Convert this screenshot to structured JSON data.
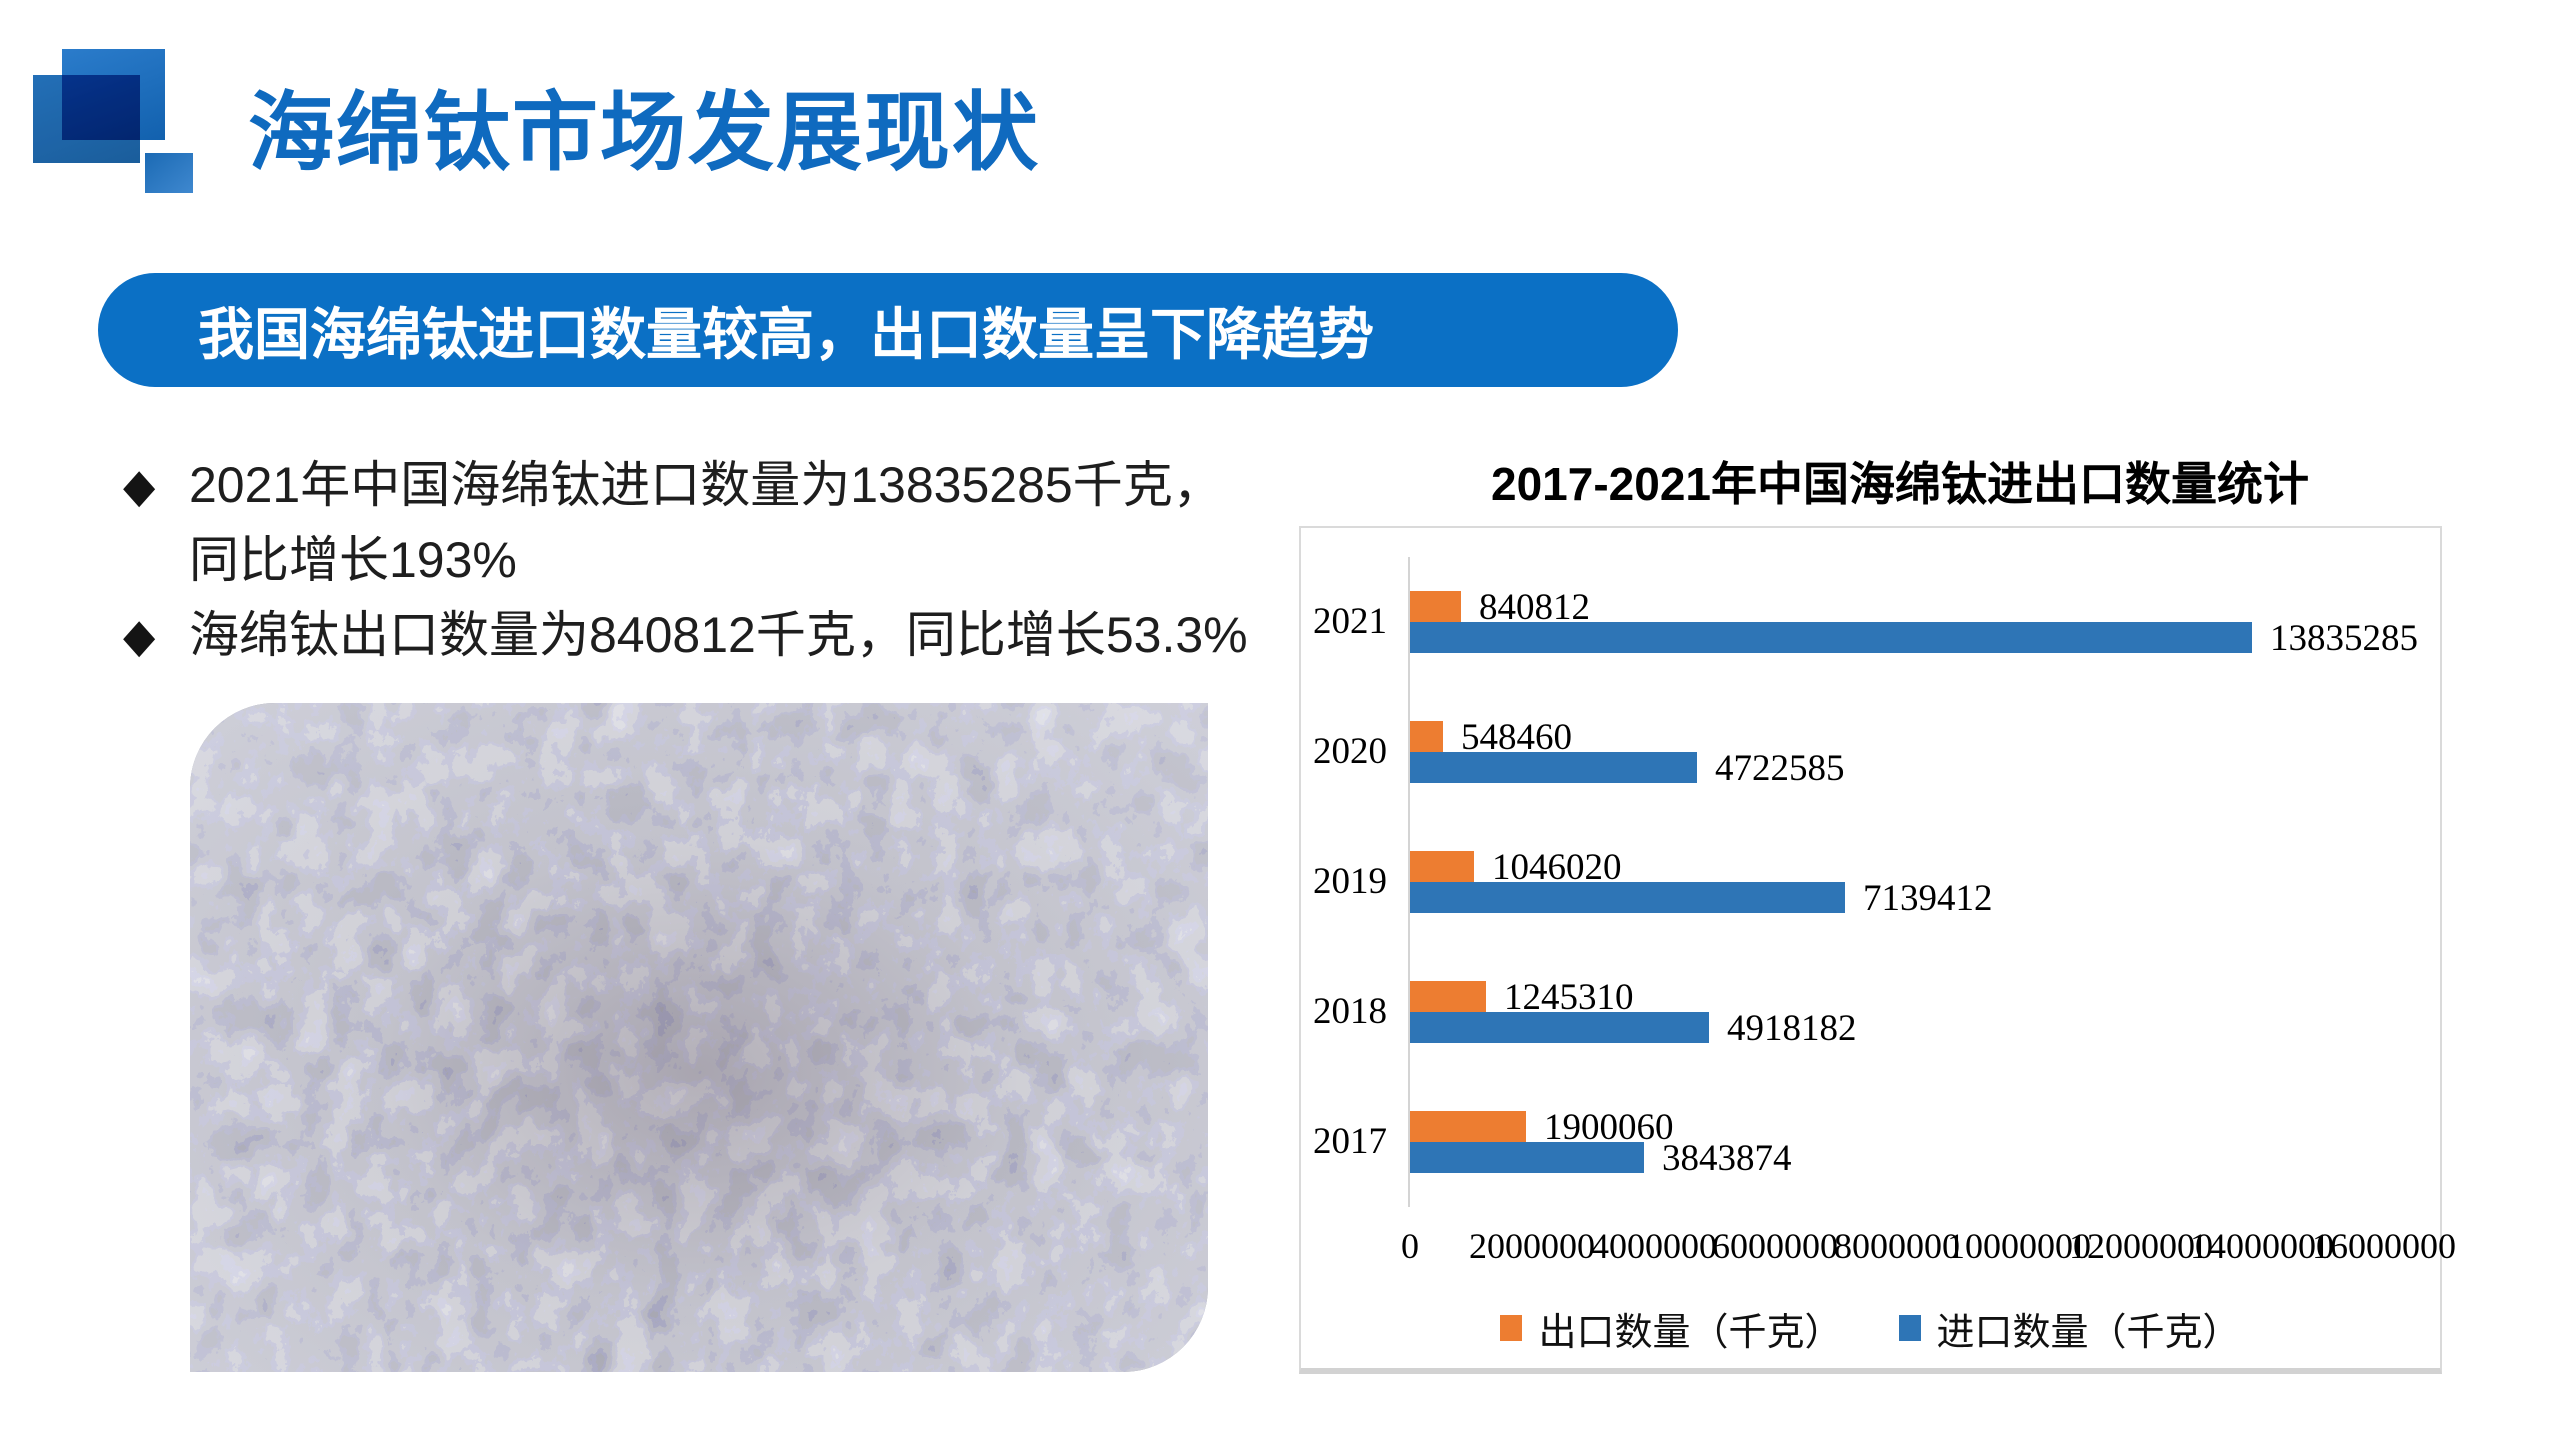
{
  "slide": {
    "title": "海绵钛市场发展现状",
    "banner": "我国海绵钛进口数量较高，出口数量呈下降趋势",
    "bullet_marker": "◆",
    "bullets": [
      "2021年中国海绵钛进口数量为13835285千克，\n同比增长193%",
      "海绵钛出口数量为840812千克，同比增长53.3%"
    ],
    "accent_blue": "#0b70c5",
    "title_blue": "#0f6abf"
  },
  "chart_data": {
    "type": "bar",
    "orientation": "horizontal",
    "title": "2017-2021年中国海绵钛进出口数量统计",
    "categories": [
      "2021",
      "2020",
      "2019",
      "2018",
      "2017"
    ],
    "series": [
      {
        "name": "出口数量（千克）",
        "color": "#ED7D31",
        "values": [
          840812,
          548460,
          1046020,
          1245310,
          1900060
        ]
      },
      {
        "name": "进口数量（千克）",
        "color": "#2E75B6",
        "values": [
          13835285,
          4722585,
          7139412,
          4918182,
          3843874
        ]
      }
    ],
    "xlim": [
      0,
      16000000
    ],
    "x_ticks": [
      0,
      2000000,
      4000000,
      6000000,
      8000000,
      10000000,
      12000000,
      14000000,
      16000000
    ],
    "grid": false,
    "legend_position": "bottom",
    "value_labels": true
  }
}
